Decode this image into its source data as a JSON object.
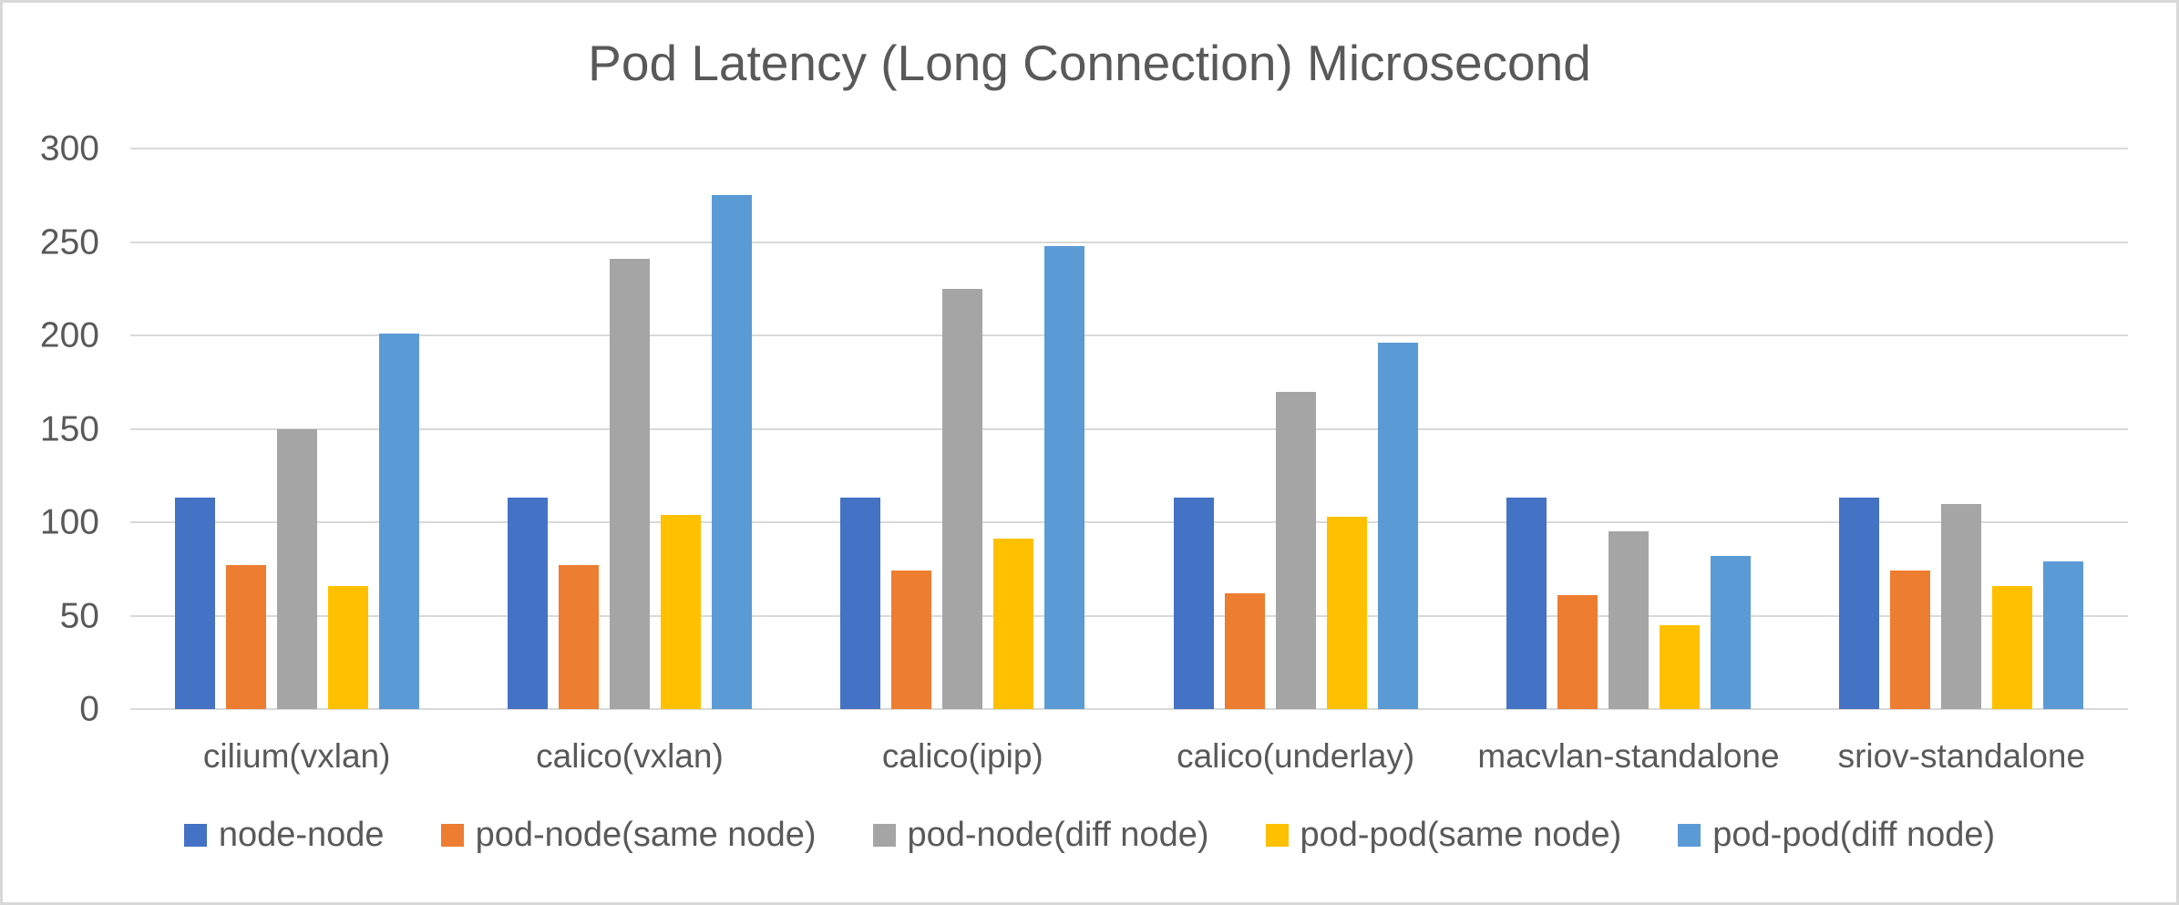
{
  "title": "Pod Latency (Long Connection) Microsecond",
  "colors": {
    "text": "#595959",
    "gridline": "#d9d9d9",
    "frame_border": "#d8d8d8",
    "background": "#ffffff"
  },
  "chart_data": {
    "type": "bar",
    "title": "Pod Latency (Long Connection) Microsecond",
    "xlabel": "",
    "ylabel": "",
    "ylim": [
      0,
      300
    ],
    "yticks": [
      0,
      50,
      100,
      150,
      200,
      250,
      300
    ],
    "grid": "horizontal",
    "legend_position": "bottom",
    "categories": [
      "cilium(vxlan)",
      "calico(vxlan)",
      "calico(ipip)",
      "calico(underlay)",
      "macvlan-standalone",
      "sriov-standalone"
    ],
    "series": [
      {
        "name": "node-node",
        "color": "#4472C4",
        "values": [
          113,
          113,
          113,
          113,
          113,
          113
        ]
      },
      {
        "name": "pod-node(same node)",
        "color": "#ED7D31",
        "values": [
          77,
          77,
          74,
          62,
          61,
          74
        ]
      },
      {
        "name": "pod-node(diff node)",
        "color": "#A5A5A5",
        "values": [
          150,
          241,
          225,
          170,
          95,
          110
        ]
      },
      {
        "name": "pod-pod(same node)",
        "color": "#FFC000",
        "values": [
          66,
          104,
          91,
          103,
          45,
          66
        ]
      },
      {
        "name": "pod-pod(diff node)",
        "color": "#5B9BD5",
        "values": [
          201,
          275,
          248,
          196,
          82,
          79
        ]
      }
    ]
  }
}
